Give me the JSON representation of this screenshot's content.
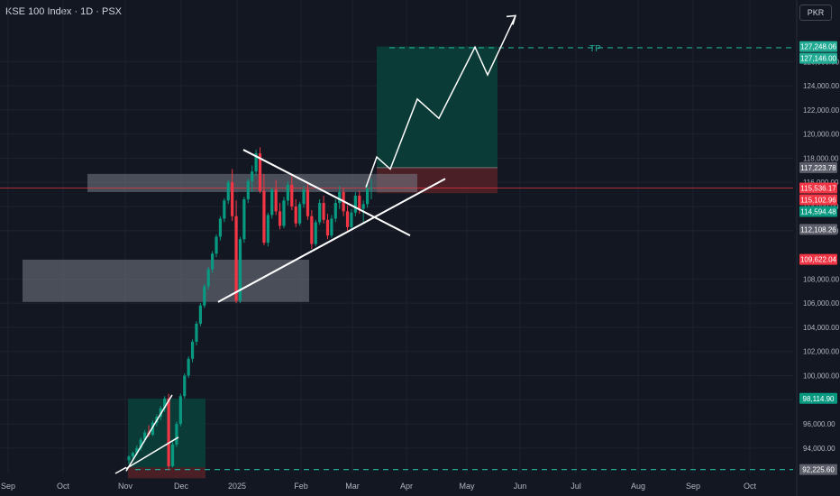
{
  "header": {
    "title": "KSE 100 Index · 1D · PSX"
  },
  "currency_button": "PKR",
  "colors": {
    "background": "#131722",
    "grid": "#1e222d",
    "up": "#089981",
    "down": "#f23645",
    "target_zone": "#0b3b36",
    "stop_zone": "#4a1f26",
    "resistance_box": "#787b86",
    "annotation": "#ffffff",
    "tp_line": "#22ab94"
  },
  "chart_data": {
    "type": "candlestick",
    "symbol": "KSE 100 Index",
    "interval": "1D",
    "exchange": "PSX",
    "currency": "PKR",
    "x_ticks": [
      "Sep",
      "Oct",
      "Nov",
      "Dec",
      "2025",
      "Feb",
      "Mar",
      "Apr",
      "May",
      "Jun",
      "Jul",
      "Aug",
      "Sep",
      "Oct"
    ],
    "y_ticks": [
      "94,000.00",
      "96,000.00",
      "98,000.00",
      "100,000.00",
      "102,000.00",
      "104,000.00",
      "106,000.00",
      "108,000.00",
      "112,000.00",
      "114,000.00",
      "116,000.00",
      "118,000.00",
      "120,000.00",
      "122,000.00",
      "124,000.00",
      "126,000.00"
    ],
    "ylim": [
      91900,
      131100
    ],
    "price_labels": [
      {
        "value": "127,248.06",
        "price": 127248.06,
        "kind": "target"
      },
      {
        "value": "127,146.00",
        "price": 127146.0,
        "kind": "target"
      },
      {
        "value": "117,223.78",
        "price": 117223.78,
        "kind": "neutral"
      },
      {
        "value": "115,536.17",
        "price": 115536.17,
        "kind": "down"
      },
      {
        "value": "115,102.96",
        "price": 115102.96,
        "kind": "down"
      },
      {
        "value": "114,594.48",
        "price": 114594.48,
        "kind": "up"
      },
      {
        "value": "112,108.26",
        "price": 112108.26,
        "kind": "neutral"
      },
      {
        "value": "109,622.04",
        "price": 109622.04,
        "kind": "down"
      },
      {
        "value": "98,114.90",
        "price": 98114.9,
        "kind": "up"
      },
      {
        "value": "92,225.60",
        "price": 92225.6,
        "kind": "neutral"
      }
    ],
    "tp_label": "TP",
    "tp_level": 127146,
    "current_price": 115536.17,
    "candles": [
      [
        93000,
        93400,
        92700,
        93300
      ],
      [
        93300,
        93700,
        93100,
        93600
      ],
      [
        93600,
        94200,
        93400,
        94000
      ],
      [
        94000,
        94900,
        93800,
        94700
      ],
      [
        94700,
        95500,
        94500,
        95300
      ],
      [
        95300,
        95900,
        94900,
        95100
      ],
      [
        95100,
        96300,
        95000,
        96100
      ],
      [
        96100,
        96800,
        95800,
        96600
      ],
      [
        96600,
        97500,
        96300,
        97300
      ],
      [
        97300,
        98300,
        97000,
        98100
      ],
      [
        98100,
        98500,
        92200,
        92500
      ],
      [
        92500,
        94500,
        92400,
        94300
      ],
      [
        94300,
        96200,
        94100,
        96000
      ],
      [
        96000,
        98500,
        95800,
        98300
      ],
      [
        98300,
        100200,
        98100,
        100000
      ],
      [
        100000,
        101600,
        99800,
        101400
      ],
      [
        101400,
        103000,
        101100,
        102800
      ],
      [
        102800,
        104500,
        102500,
        104300
      ],
      [
        104300,
        106000,
        104100,
        105800
      ],
      [
        105800,
        107600,
        105600,
        107400
      ],
      [
        107400,
        109000,
        107100,
        108800
      ],
      [
        108800,
        110300,
        108500,
        110100
      ],
      [
        110100,
        111700,
        109800,
        111500
      ],
      [
        111500,
        113200,
        111200,
        113000
      ],
      [
        113000,
        114700,
        112700,
        114500
      ],
      [
        114500,
        116200,
        114200,
        116000
      ],
      [
        116000,
        117100,
        112800,
        113200
      ],
      [
        113200,
        114500,
        106000,
        106200
      ],
      [
        106200,
        111500,
        106000,
        111300
      ],
      [
        111300,
        114800,
        111000,
        114600
      ],
      [
        114600,
        116300,
        114300,
        116100
      ],
      [
        116100,
        117400,
        115200,
        116900
      ],
      [
        116900,
        118700,
        116500,
        118400
      ],
      [
        118400,
        118900,
        115100,
        115300
      ],
      [
        115300,
        116700,
        110800,
        111000
      ],
      [
        111000,
        113500,
        110700,
        113300
      ],
      [
        113300,
        115600,
        113000,
        115400
      ],
      [
        115400,
        116200,
        113300,
        113600
      ],
      [
        113600,
        114300,
        112100,
        112400
      ],
      [
        112400,
        114800,
        112200,
        114500
      ],
      [
        114500,
        116100,
        114100,
        115800
      ],
      [
        115800,
        116500,
        113700,
        114000
      ],
      [
        114000,
        114600,
        112300,
        112600
      ],
      [
        112600,
        114400,
        112400,
        114200
      ],
      [
        114200,
        115700,
        113900,
        115400
      ],
      [
        115400,
        115900,
        112900,
        113200
      ],
      [
        113200,
        113700,
        110500,
        110900
      ],
      [
        110900,
        112900,
        110700,
        112700
      ],
      [
        112700,
        114600,
        112500,
        114300
      ],
      [
        114300,
        114900,
        112600,
        112900
      ],
      [
        112900,
        113400,
        111300,
        111600
      ],
      [
        111600,
        113300,
        111400,
        113000
      ],
      [
        113000,
        114600,
        112700,
        114300
      ],
      [
        114300,
        115700,
        113800,
        115200
      ],
      [
        115200,
        115500,
        113200,
        113600
      ],
      [
        113600,
        114100,
        112000,
        112300
      ],
      [
        112300,
        113800,
        112100,
        113500
      ],
      [
        113500,
        115200,
        113200,
        114900
      ],
      [
        114900,
        115300,
        113400,
        113800
      ],
      [
        113800,
        114500,
        112700,
        114200
      ],
      [
        114200,
        115800,
        113900,
        115500
      ],
      [
        115500,
        116300,
        114600,
        115536
      ]
    ],
    "zones": {
      "entry_box_price": [
        92100,
        98100
      ],
      "resistance_box": [
        115200,
        116700
      ],
      "support_box": [
        106100,
        109600
      ],
      "target_zone": [
        117224,
        127248
      ],
      "stop_zone": [
        115103,
        117224
      ]
    },
    "annotations": {
      "descending_trendline": [
        [
          118700,
          111600
        ]
      ],
      "ascending_trendline": [
        [
          106100,
          116300
        ]
      ],
      "projected_path": [
        115600,
        118100,
        117100,
        122900,
        121300,
        127200,
        124900,
        129800
      ]
    }
  }
}
